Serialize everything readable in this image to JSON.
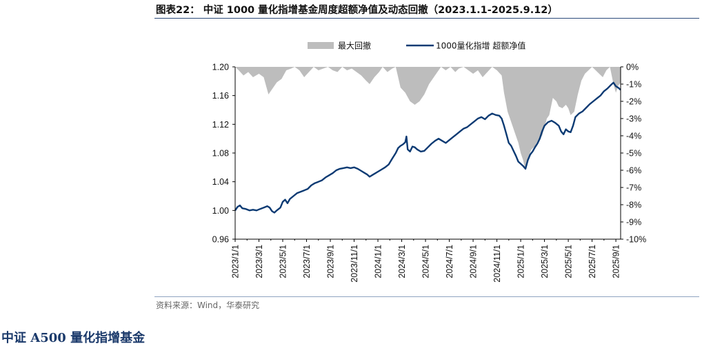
{
  "header": {
    "title": "图表22： 中证 1000 量化指增基金周度超额净值及动态回撤（2023.1.1-2025.9.12）"
  },
  "footer": {
    "source": "资料来源：Wind，华泰研究",
    "next_heading": "中证 A500 量化指增基金"
  },
  "colors": {
    "line": "#0b3a73",
    "drawdown": "#bdbdbd",
    "axis": "#000000",
    "title_rule": "#2b4a7a"
  },
  "chart_data": {
    "type": "line",
    "title": "中证 1000 量化指增基金周度超额净值及动态回撤",
    "x_ticks": [
      "2023/1/1",
      "2023/3/1",
      "2023/5/1",
      "2023/7/1",
      "2023/9/1",
      "2023/11/1",
      "2024/1/1",
      "2024/3/1",
      "2024/5/1",
      "2024/7/1",
      "2024/9/1",
      "2024/11/1",
      "2025/1/1",
      "2025/3/1",
      "2025/5/1",
      "2025/7/1",
      "2025/9/1"
    ],
    "x_range_months": [
      0,
      32.4
    ],
    "y_left": {
      "min": 0.96,
      "max": 1.2,
      "ticks": [
        "0.96",
        "1.00",
        "1.04",
        "1.08",
        "1.12",
        "1.16",
        "1.20"
      ],
      "tick_values": [
        0.96,
        1.0,
        1.04,
        1.08,
        1.12,
        1.16,
        1.2
      ]
    },
    "y_right": {
      "min": -10,
      "max": 0,
      "ticks": [
        "0%",
        "-1%",
        "-2%",
        "-3%",
        "-4%",
        "-5%",
        "-6%",
        "-7%",
        "-8%",
        "-9%",
        "-10%"
      ],
      "tick_values": [
        0,
        -1,
        -2,
        -3,
        -4,
        -5,
        -6,
        -7,
        -8,
        -9,
        -10
      ]
    },
    "legend_position": "top-center",
    "series": [
      {
        "name": "最大回撤",
        "kind": "area",
        "axis": "right",
        "points": [
          [
            0,
            0
          ],
          [
            0.3,
            -0.2
          ],
          [
            0.7,
            -0.5
          ],
          [
            1.1,
            -0.3
          ],
          [
            1.5,
            -0.6
          ],
          [
            2,
            -0.4
          ],
          [
            2.4,
            -0.6
          ],
          [
            2.8,
            -1.6
          ],
          [
            3.1,
            -1.3
          ],
          [
            3.5,
            -0.9
          ],
          [
            3.9,
            -0.7
          ],
          [
            4.3,
            -0.2
          ],
          [
            4.7,
            -0.1
          ],
          [
            5,
            0
          ],
          [
            5.4,
            -0.2
          ],
          [
            5.8,
            -0.6
          ],
          [
            6.2,
            -0.3
          ],
          [
            6.6,
            0
          ],
          [
            7,
            -0.2
          ],
          [
            7.4,
            -0.1
          ],
          [
            7.8,
            0
          ],
          [
            8.2,
            -0.2
          ],
          [
            8.6,
            -0.3
          ],
          [
            9,
            0
          ],
          [
            9.4,
            -0.2
          ],
          [
            9.8,
            -0.1
          ],
          [
            10.2,
            -0.3
          ],
          [
            10.6,
            -0.5
          ],
          [
            11,
            -0.8
          ],
          [
            11.3,
            -1.0
          ],
          [
            11.7,
            -0.6
          ],
          [
            12.1,
            -0.3
          ],
          [
            12.4,
            0
          ],
          [
            12.8,
            -0.3
          ],
          [
            13.2,
            -0.1
          ],
          [
            13.5,
            0
          ],
          [
            13.9,
            -1.2
          ],
          [
            14.3,
            -1.5
          ],
          [
            14.7,
            -2.0
          ],
          [
            15.1,
            -2.2
          ],
          [
            15.5,
            -2.0
          ],
          [
            15.9,
            -1.6
          ],
          [
            16.3,
            -1.0
          ],
          [
            16.7,
            -0.6
          ],
          [
            17,
            -0.3
          ],
          [
            17.3,
            0
          ],
          [
            17.7,
            -0.2
          ],
          [
            18.1,
            0
          ],
          [
            18.5,
            -0.3
          ],
          [
            18.8,
            -0.1
          ],
          [
            19.2,
            0
          ],
          [
            19.6,
            -0.2
          ],
          [
            20,
            -0.4
          ],
          [
            20.4,
            -0.2
          ],
          [
            20.8,
            -0.6
          ],
          [
            21.2,
            -0.3
          ],
          [
            21.6,
            0
          ],
          [
            22,
            -0.2
          ],
          [
            22.4,
            -0.5
          ],
          [
            22.6,
            -1.5
          ],
          [
            22.9,
            -2.6
          ],
          [
            23.2,
            -3.2
          ],
          [
            23.5,
            -3.8
          ],
          [
            23.8,
            -4.4
          ],
          [
            24,
            -5.0
          ],
          [
            24.2,
            -5.4
          ],
          [
            24.4,
            -6.0
          ],
          [
            24.6,
            -5.3
          ],
          [
            24.9,
            -4.8
          ],
          [
            25.2,
            -4.6
          ],
          [
            25.5,
            -4.2
          ],
          [
            25.8,
            -4.0
          ],
          [
            26,
            -3.5
          ],
          [
            26.2,
            -3.0
          ],
          [
            26.4,
            -2.8
          ],
          [
            26.7,
            -1.8
          ],
          [
            27,
            -2.0
          ],
          [
            27.2,
            -2.3
          ],
          [
            27.5,
            -2.4
          ],
          [
            27.8,
            -2.2
          ],
          [
            28,
            -2.4
          ],
          [
            28.2,
            -2.8
          ],
          [
            28.5,
            -2.6
          ],
          [
            28.8,
            -1.6
          ],
          [
            29.1,
            -0.8
          ],
          [
            29.4,
            -0.4
          ],
          [
            29.7,
            -0.2
          ],
          [
            30,
            0
          ],
          [
            30.3,
            -0.2
          ],
          [
            30.6,
            -0.4
          ],
          [
            30.9,
            -0.6
          ],
          [
            31.2,
            -0.2
          ],
          [
            31.5,
            0
          ],
          [
            31.8,
            -1.0
          ],
          [
            32,
            -1.5
          ],
          [
            32.2,
            -1.1
          ],
          [
            32.4,
            -0.9
          ]
        ]
      },
      {
        "name": "1000量化指增 超额净值",
        "kind": "line",
        "axis": "left",
        "points": [
          [
            0,
            1.0
          ],
          [
            0.2,
            1.005
          ],
          [
            0.4,
            1.007
          ],
          [
            0.6,
            1.003
          ],
          [
            0.9,
            1.002
          ],
          [
            1.2,
            1.0
          ],
          [
            1.5,
            1.001
          ],
          [
            1.8,
            1.0
          ],
          [
            2.1,
            1.002
          ],
          [
            2.4,
            1.004
          ],
          [
            2.7,
            1.006
          ],
          [
            2.9,
            1.004
          ],
          [
            3.1,
            0.999
          ],
          [
            3.3,
            0.997
          ],
          [
            3.5,
            1.0
          ],
          [
            3.8,
            1.004
          ],
          [
            4,
            1.012
          ],
          [
            4.2,
            1.015
          ],
          [
            4.4,
            1.01
          ],
          [
            4.6,
            1.016
          ],
          [
            4.9,
            1.02
          ],
          [
            5.2,
            1.024
          ],
          [
            5.5,
            1.026
          ],
          [
            5.8,
            1.028
          ],
          [
            6.1,
            1.03
          ],
          [
            6.4,
            1.035
          ],
          [
            6.7,
            1.038
          ],
          [
            7,
            1.04
          ],
          [
            7.3,
            1.042
          ],
          [
            7.6,
            1.046
          ],
          [
            7.9,
            1.049
          ],
          [
            8.2,
            1.052
          ],
          [
            8.5,
            1.056
          ],
          [
            8.8,
            1.058
          ],
          [
            9.1,
            1.059
          ],
          [
            9.4,
            1.06
          ],
          [
            9.7,
            1.059
          ],
          [
            10,
            1.06
          ],
          [
            10.3,
            1.058
          ],
          [
            10.6,
            1.055
          ],
          [
            10.9,
            1.052
          ],
          [
            11.1,
            1.05
          ],
          [
            11.3,
            1.047
          ],
          [
            11.5,
            1.049
          ],
          [
            11.7,
            1.051
          ],
          [
            12,
            1.054
          ],
          [
            12.3,
            1.057
          ],
          [
            12.6,
            1.06
          ],
          [
            12.9,
            1.064
          ],
          [
            13.2,
            1.072
          ],
          [
            13.5,
            1.08
          ],
          [
            13.7,
            1.087
          ],
          [
            13.9,
            1.09
          ],
          [
            14.1,
            1.092
          ],
          [
            14.3,
            1.095
          ],
          [
            14.4,
            1.103
          ],
          [
            14.5,
            1.085
          ],
          [
            14.7,
            1.082
          ],
          [
            14.9,
            1.089
          ],
          [
            15.1,
            1.088
          ],
          [
            15.3,
            1.085
          ],
          [
            15.6,
            1.082
          ],
          [
            15.9,
            1.083
          ],
          [
            16.2,
            1.088
          ],
          [
            16.5,
            1.093
          ],
          [
            16.8,
            1.097
          ],
          [
            17.1,
            1.1
          ],
          [
            17.4,
            1.097
          ],
          [
            17.7,
            1.094
          ],
          [
            18,
            1.098
          ],
          [
            18.3,
            1.102
          ],
          [
            18.6,
            1.106
          ],
          [
            18.9,
            1.11
          ],
          [
            19.2,
            1.114
          ],
          [
            19.5,
            1.116
          ],
          [
            19.8,
            1.12
          ],
          [
            20.1,
            1.124
          ],
          [
            20.4,
            1.128
          ],
          [
            20.7,
            1.13
          ],
          [
            21,
            1.127
          ],
          [
            21.3,
            1.132
          ],
          [
            21.6,
            1.135
          ],
          [
            21.9,
            1.133
          ],
          [
            22.2,
            1.132
          ],
          [
            22.4,
            1.128
          ],
          [
            22.6,
            1.118
          ],
          [
            22.8,
            1.106
          ],
          [
            23,
            1.094
          ],
          [
            23.2,
            1.09
          ],
          [
            23.4,
            1.083
          ],
          [
            23.6,
            1.076
          ],
          [
            23.8,
            1.068
          ],
          [
            24,
            1.065
          ],
          [
            24.2,
            1.062
          ],
          [
            24.4,
            1.058
          ],
          [
            24.6,
            1.07
          ],
          [
            24.8,
            1.078
          ],
          [
            25,
            1.082
          ],
          [
            25.2,
            1.088
          ],
          [
            25.4,
            1.093
          ],
          [
            25.6,
            1.1
          ],
          [
            25.8,
            1.11
          ],
          [
            26,
            1.118
          ],
          [
            26.3,
            1.123
          ],
          [
            26.6,
            1.125
          ],
          [
            26.9,
            1.122
          ],
          [
            27.2,
            1.118
          ],
          [
            27.4,
            1.11
          ],
          [
            27.6,
            1.106
          ],
          [
            27.8,
            1.113
          ],
          [
            28,
            1.11
          ],
          [
            28.2,
            1.109
          ],
          [
            28.4,
            1.118
          ],
          [
            28.6,
            1.13
          ],
          [
            28.9,
            1.135
          ],
          [
            29.2,
            1.138
          ],
          [
            29.5,
            1.143
          ],
          [
            29.8,
            1.148
          ],
          [
            30.1,
            1.152
          ],
          [
            30.4,
            1.156
          ],
          [
            30.7,
            1.16
          ],
          [
            31,
            1.166
          ],
          [
            31.3,
            1.17
          ],
          [
            31.6,
            1.175
          ],
          [
            31.8,
            1.178
          ],
          [
            32,
            1.173
          ],
          [
            32.2,
            1.171
          ],
          [
            32.4,
            1.168
          ]
        ]
      }
    ]
  }
}
